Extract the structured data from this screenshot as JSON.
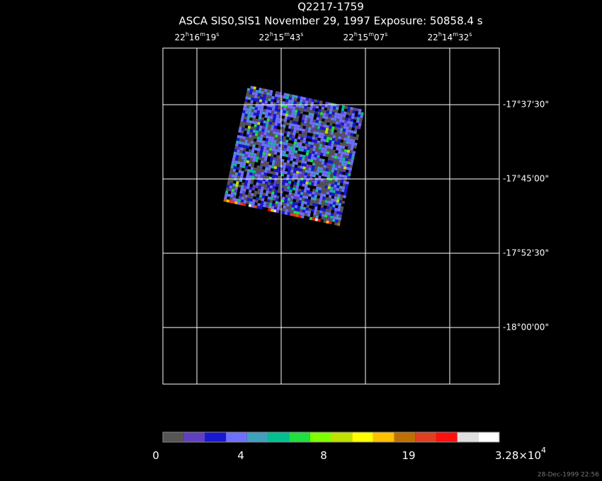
{
  "header": {
    "title": "Q2217-1759",
    "subtitle": "ASCA SIS0,SIS1 November 29, 1997 Exposure: 50858.4 s"
  },
  "ra_labels": [
    [
      "22",
      "h",
      "16",
      "m",
      "19",
      "s"
    ],
    [
      "22",
      "h",
      "15",
      "m",
      "43",
      "s"
    ],
    [
      "22",
      "h",
      "15",
      "m",
      "07",
      "s"
    ],
    [
      "22",
      "h",
      "14",
      "m",
      "32",
      "s"
    ]
  ],
  "dec_labels": [
    "-17°37'30\"",
    "-17°45'00\"",
    "-17°52'30\"",
    "-18°00'00\""
  ],
  "colorbar": {
    "colors": [
      "#555555",
      "#6040c0",
      "#1818d0",
      "#7070ff",
      "#40a0c0",
      "#00c090",
      "#20e040",
      "#80ff00",
      "#c0e000",
      "#ffff00",
      "#ffc000",
      "#c07000",
      "#e04020",
      "#ff1010",
      "#e0e0e0",
      "#ffffff"
    ],
    "labels": [
      [
        "0"
      ],
      [
        "4"
      ],
      [
        "8"
      ],
      [
        "19"
      ],
      [
        "3.28×10",
        "4"
      ]
    ]
  },
  "timestamp": "28-Dec-1999 22:56"
}
